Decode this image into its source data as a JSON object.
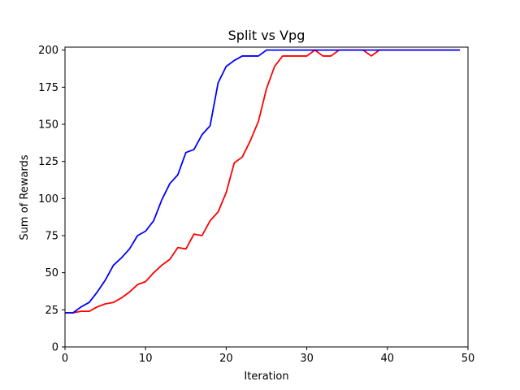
{
  "chart_data": {
    "type": "line",
    "title": "Split vs Vpg",
    "xlabel": "Iteration",
    "ylabel": "Sum of Rewards",
    "xlim": [
      0,
      50
    ],
    "ylim": [
      0,
      202
    ],
    "xticks": [
      0,
      10,
      20,
      30,
      40,
      50
    ],
    "yticks": [
      0,
      25,
      50,
      75,
      100,
      125,
      150,
      175,
      200
    ],
    "grid": false,
    "legend": "none",
    "x": [
      0,
      1,
      2,
      3,
      4,
      5,
      6,
      7,
      8,
      9,
      10,
      11,
      12,
      13,
      14,
      15,
      16,
      17,
      18,
      19,
      20,
      21,
      22,
      23,
      24,
      25,
      26,
      27,
      28,
      29,
      30,
      31,
      32,
      33,
      34,
      35,
      36,
      37,
      38,
      39,
      40,
      41,
      42,
      43,
      44,
      45,
      46,
      47,
      48,
      49
    ],
    "series": [
      {
        "color": "#ff0000",
        "values": [
          23,
          23,
          24,
          24,
          27,
          29,
          30,
          33,
          37,
          42,
          44,
          50,
          55,
          59,
          67,
          66,
          76,
          75,
          85,
          91,
          104,
          124,
          128,
          139,
          152,
          174,
          189,
          196,
          196,
          196,
          196,
          200,
          196,
          196,
          200,
          200,
          200,
          200,
          196,
          200,
          200,
          200,
          200,
          200,
          200,
          200,
          200,
          200,
          200,
          200
        ]
      },
      {
        "color": "#0000ff",
        "values": [
          23,
          23,
          27,
          30,
          37,
          45,
          55,
          60,
          66,
          75,
          78,
          85,
          99,
          110,
          116,
          131,
          133,
          143,
          149,
          178,
          189,
          193,
          196,
          196,
          196,
          200,
          200,
          200,
          200,
          200,
          200,
          200,
          200,
          200,
          200,
          200,
          200,
          200,
          200,
          200,
          200,
          200,
          200,
          200,
          200,
          200,
          200,
          200,
          200,
          200
        ]
      }
    ]
  }
}
